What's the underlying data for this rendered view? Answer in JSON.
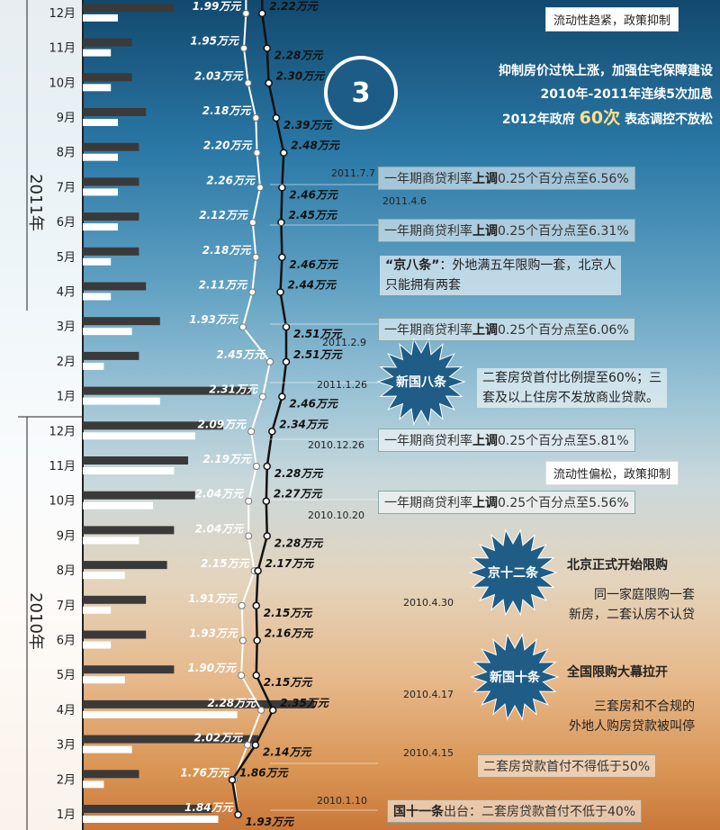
{
  "chart_data": {
    "type": "line",
    "months": [
      {
        "year": "2010年",
        "month": "1月",
        "bar_dark": 1.84,
        "bar_light": 1.93,
        "ind_label": "1.84万元",
        "ex_label": "1.93万元"
      },
      {
        "year": "2010年",
        "month": "2月",
        "bar_dark": 0.8,
        "bar_light": 0.3,
        "ind_label": "1.76万元",
        "ex_label": "1.86万元"
      },
      {
        "year": "2010年",
        "month": "3月",
        "bar_dark": 2.5,
        "bar_light": 0.7,
        "ind_label": "2.02万元",
        "ex_label": "2.14万元"
      },
      {
        "year": "2010年",
        "month": "4月",
        "bar_dark": 3.3,
        "bar_light": 2.2,
        "ind_label": "2.28万元",
        "ex_label": "2.35万元"
      },
      {
        "year": "2010年",
        "month": "5月",
        "bar_dark": 1.3,
        "bar_light": 0.6,
        "ind_label": "1.90万元",
        "ex_label": "2.15万元"
      },
      {
        "year": "2010年",
        "month": "6月",
        "bar_dark": 0.9,
        "bar_light": 0.4,
        "ind_label": "1.93万元",
        "ex_label": "2.16万元"
      },
      {
        "year": "2010年",
        "month": "7月",
        "bar_dark": 0.9,
        "bar_light": 0.4,
        "ind_label": "1.91万元",
        "ex_label": "2.15万元"
      },
      {
        "year": "2010年",
        "month": "8月",
        "bar_dark": 1.2,
        "bar_light": 0.6,
        "ind_label": "2.15万元",
        "ex_label": "2.17万元"
      },
      {
        "year": "2010年",
        "month": "9月",
        "bar_dark": 1.3,
        "bar_light": 0.8,
        "ind_label": "2.04万元",
        "ex_label": "2.28万元"
      },
      {
        "year": "2010年",
        "month": "10月",
        "bar_dark": 1.6,
        "bar_light": 1.0,
        "ind_label": "2.04万元",
        "ex_label": "2.27万元"
      },
      {
        "year": "2010年",
        "month": "11月",
        "bar_dark": 1.5,
        "bar_light": 1.3,
        "ind_label": "2.19万元",
        "ex_label": "2.28万元"
      },
      {
        "year": "2010年",
        "month": "12月",
        "bar_dark": 2.0,
        "bar_light": 1.6,
        "ind_label": "2.09万元",
        "ex_label": "2.34万元"
      },
      {
        "year": "2011年",
        "month": "1月",
        "bar_dark": 2.4,
        "bar_light": 1.1,
        "ind_label": "2.31万元",
        "ex_label": "2.46万元"
      },
      {
        "year": "2011年",
        "month": "2月",
        "bar_dark": 0.8,
        "bar_light": 0.3,
        "ind_label": "2.45万元",
        "ex_label": "2.51万元"
      },
      {
        "year": "2011年",
        "month": "3月",
        "bar_dark": 1.1,
        "bar_light": 0.7,
        "ind_label": "1.93万元",
        "ex_label": "2.51万元"
      },
      {
        "year": "2011年",
        "month": "4月",
        "bar_dark": 0.9,
        "bar_light": 0.4,
        "ind_label": "2.11万元",
        "ex_label": "2.44万元"
      },
      {
        "year": "2011年",
        "month": "5月",
        "bar_dark": 0.8,
        "bar_light": 0.4,
        "ind_label": "2.18万元",
        "ex_label": "2.46万元"
      },
      {
        "year": "2011年",
        "month": "6月",
        "bar_dark": 0.8,
        "bar_light": 0.5,
        "ind_label": "2.12万元",
        "ex_label": "2.45万元"
      },
      {
        "year": "2011年",
        "month": "7月",
        "bar_dark": 0.8,
        "bar_light": 0.5,
        "ind_label": "2.26万元",
        "ex_label": "2.46万元"
      },
      {
        "year": "2011年",
        "month": "8月",
        "bar_dark": 0.8,
        "bar_light": 0.5,
        "ind_label": "2.20万元",
        "ex_label": "2.48万元"
      },
      {
        "year": "2011年",
        "month": "9月",
        "bar_dark": 0.9,
        "bar_light": 0.5,
        "ind_label": "2.18万元",
        "ex_label": "2.39万元"
      },
      {
        "year": "2011年",
        "month": "10月",
        "bar_dark": 0.7,
        "bar_light": 0.4,
        "ind_label": "2.03万元",
        "ex_label": "2.30万元"
      },
      {
        "year": "2011年",
        "month": "11月",
        "bar_dark": 0.7,
        "bar_light": 0.4,
        "ind_label": "1.95万元",
        "ex_label": "2.28万元"
      },
      {
        "year": "2011年",
        "month": "12月",
        "bar_dark": 1.3,
        "bar_light": 0.5,
        "ind_label": "1.99万元",
        "ex_label": "2.22万元"
      }
    ],
    "series_values": {
      "independent": [
        1.84,
        1.76,
        2.02,
        2.28,
        1.9,
        1.93,
        1.91,
        2.15,
        2.04,
        2.04,
        2.19,
        2.09,
        2.31,
        2.45,
        1.93,
        2.11,
        2.18,
        2.12,
        2.26,
        2.2,
        2.18,
        2.03,
        1.95,
        1.99
      ],
      "overall": [
        1.93,
        1.86,
        2.14,
        2.35,
        2.15,
        2.16,
        2.15,
        2.17,
        2.28,
        2.27,
        2.28,
        2.34,
        2.46,
        2.51,
        2.51,
        2.44,
        2.46,
        2.45,
        2.46,
        2.48,
        2.39,
        2.3,
        2.28,
        2.22
      ]
    },
    "years": [
      "2010年",
      "2011年"
    ],
    "colors": {
      "dark_bar": "#3a3a3a",
      "light_bar": "#ffffff",
      "line_light": "#ffffff",
      "line_dark": "#111111"
    }
  },
  "tags": {
    "top": "流动性趋紧，政策抑制",
    "mid": "流动性偏松，政策抑制"
  },
  "headline": {
    "number": "3",
    "line1": "抑制房价过快上涨，加强住宅保障建设",
    "line2": "2010年-2011年连续5次加息",
    "line3_pre": "2012年政府",
    "line3_big": "60次",
    "line3_post": "表态调控不放松"
  },
  "events": [
    {
      "date": "2011.7.7",
      "text_pre": "一年期商贷利率",
      "text_bold": "上调",
      "text_post": "0.25个百分点至6.56%"
    },
    {
      "date": "2011.4.6",
      "text_pre": "一年期商贷利率",
      "text_bold": "上调",
      "text_post": "0.25个百分点至6.31%"
    },
    {
      "date": "2011.2.9",
      "text_pre": "一年期商贷利率",
      "text_bold": "上调",
      "text_post": "0.25个百分点至6.06%"
    },
    {
      "date": "2010.12.26",
      "text_pre": "一年期商贷利率",
      "text_bold": "上调",
      "text_post": "0.25个百分点至5.81%"
    },
    {
      "date": "2010.10.20",
      "text_pre": "一年期商贷利率",
      "text_bold": "上调",
      "text_post": "0.25个百分点至5.56%"
    },
    {
      "date": "2010.4.15",
      "text_pre": "",
      "text_bold": "",
      "text_post": "二套房贷款首付不得低于50%"
    },
    {
      "date": "2010.1.10",
      "text_pre": "",
      "text_bold": "国十一条",
      "text_post": "出台：二套房贷款首付不低于40%"
    }
  ],
  "notes": {
    "jing8_title": "“京八条”",
    "jing8_l1": "：外地满五年限购一套，北京人",
    "jing8_l2": "只能拥有两套",
    "xin8_badge": "新国八条",
    "xin8_date": "2011.1.26",
    "xin8_l1": "二套房贷首付比例提至60%；三",
    "xin8_l2": "套及以上住房不发放商业贷款。",
    "jing12_badge": "京十二条",
    "jing12_date": "2010.4.30",
    "jing12_title": "北京正式开始限购",
    "jing12_l1": "同一家庭限购一套",
    "jing12_l2": "新房，二套认房不认贷",
    "xin10_badge": "新国十条",
    "xin10_date": "2010.4.17",
    "xin10_title": "全国限购大幕拉开",
    "xin10_l1": "三套房和不合规的",
    "xin10_l2": "外地人购房贷款被叫停"
  }
}
